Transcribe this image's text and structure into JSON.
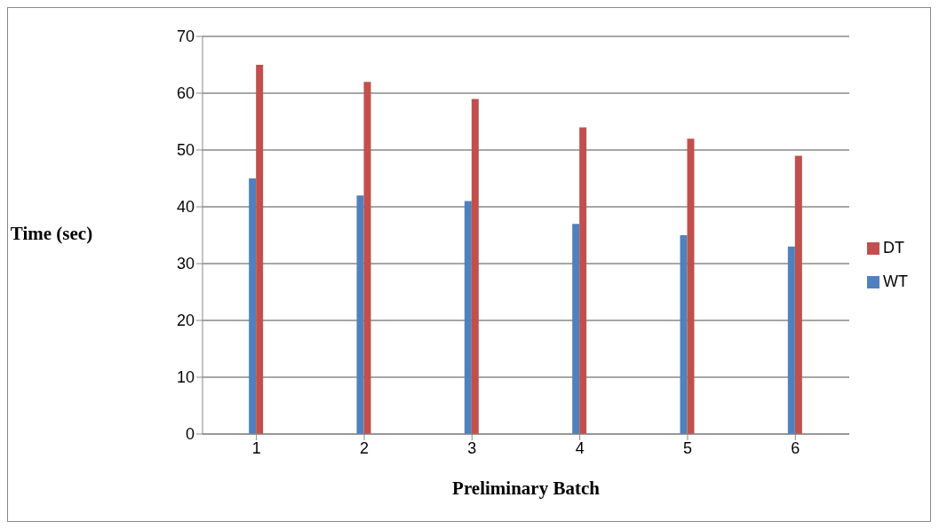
{
  "chart_data": {
    "type": "bar",
    "xlabel": "Preliminary Batch",
    "ylabel": "Time (sec)",
    "categories": [
      "1",
      "2",
      "3",
      "4",
      "5",
      "6"
    ],
    "series": [
      {
        "name": "WT",
        "color": "#4f81bd",
        "values": [
          45,
          42,
          41,
          37,
          35,
          33
        ]
      },
      {
        "name": "DT",
        "color": "#c0504d",
        "values": [
          65,
          62,
          59,
          54,
          52,
          49
        ]
      }
    ],
    "ylim": [
      0,
      70
    ],
    "yticks": [
      0,
      10,
      20,
      30,
      40,
      50,
      60,
      70
    ],
    "grid": "y",
    "legend": "right"
  }
}
